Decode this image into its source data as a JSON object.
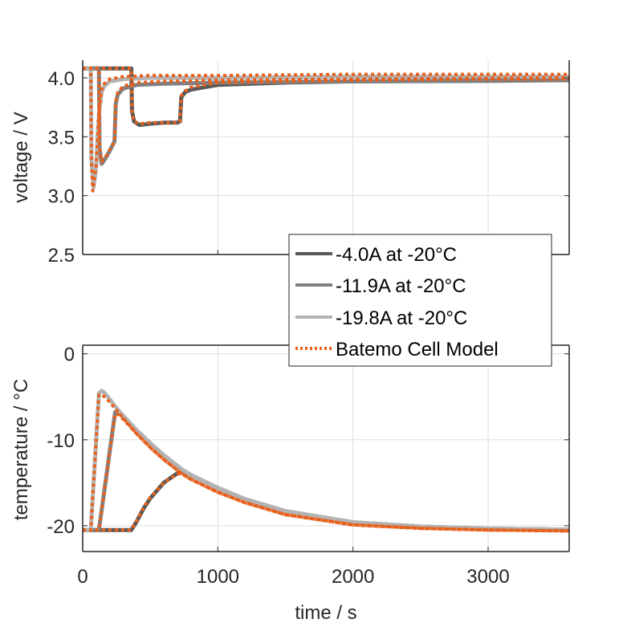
{
  "chart_data": [
    {
      "id": "voltage",
      "type": "line",
      "ylabel": "voltage / V",
      "xlabel": "",
      "xlim": [
        0,
        3600
      ],
      "ylim": [
        2.5,
        4.15
      ],
      "yticks": [
        2.5,
        3.0,
        3.5,
        4.0
      ],
      "ytick_labels": [
        "2.5",
        "3.0",
        "3.5",
        "4.0"
      ],
      "xticks": [
        0,
        1000,
        2000,
        3000
      ],
      "grid": true,
      "series": [
        {
          "name": "-4.0A at -20°C",
          "color": "#595959",
          "style": "solid",
          "x": [
            0,
            360,
            365,
            380,
            420,
            500,
            600,
            700,
            720,
            730,
            760,
            800,
            900,
            1000,
            1500,
            2000,
            3000,
            3600
          ],
          "y": [
            4.08,
            4.08,
            3.72,
            3.63,
            3.6,
            3.61,
            3.62,
            3.62,
            3.63,
            3.84,
            3.88,
            3.9,
            3.92,
            3.94,
            3.96,
            3.97,
            3.975,
            3.98
          ]
        },
        {
          "name": "-11.9A at -20°C",
          "color": "#808080",
          "style": "solid",
          "x": [
            0,
            120,
            125,
            140,
            170,
            200,
            235,
            245,
            260,
            300,
            400,
            600,
            1000,
            2000,
            3600
          ],
          "y": [
            4.08,
            4.08,
            3.4,
            3.27,
            3.32,
            3.38,
            3.46,
            3.78,
            3.86,
            3.91,
            3.94,
            3.95,
            3.96,
            3.97,
            3.98
          ]
        },
        {
          "name": "-19.8A at -20°C",
          "color": "#b3b3b3",
          "style": "solid",
          "x": [
            0,
            60,
            65,
            80,
            100,
            120,
            140,
            160,
            200,
            300,
            500,
            1000,
            2000,
            3600
          ],
          "y": [
            4.08,
            4.08,
            3.3,
            3.07,
            3.25,
            3.7,
            3.88,
            3.93,
            3.97,
            3.99,
            4.0,
            4.0,
            4.01,
            4.01
          ]
        },
        {
          "name": "Batemo Cell Model",
          "color": "#e8601c",
          "style": "dotted",
          "x": [
            0,
            60,
            65,
            75,
            100,
            120,
            140,
            160,
            200,
            300,
            500,
            1000,
            2000,
            3600
          ],
          "y": [
            4.08,
            4.08,
            3.3,
            3.04,
            3.25,
            3.7,
            3.9,
            3.95,
            3.99,
            4.01,
            4.02,
            4.02,
            4.03,
            4.03
          ]
        },
        {
          "name": "Batemo Cell Model",
          "color": "#e8601c",
          "style": "dotted",
          "x": [
            0,
            120,
            125,
            140,
            170,
            200,
            235,
            245,
            260,
            300,
            400,
            600,
            1000,
            2000,
            3600
          ],
          "y": [
            4.08,
            4.08,
            3.4,
            3.29,
            3.33,
            3.39,
            3.46,
            3.8,
            3.88,
            3.93,
            3.96,
            3.97,
            3.98,
            3.99,
            4.0
          ]
        },
        {
          "name": "Batemo Cell Model",
          "color": "#e8601c",
          "style": "dotted",
          "x": [
            0,
            360,
            365,
            380,
            420,
            500,
            600,
            700,
            720,
            730,
            760,
            800,
            900,
            1000,
            1500,
            2000,
            3000,
            3600
          ],
          "y": [
            4.08,
            4.08,
            3.72,
            3.63,
            3.61,
            3.62,
            3.62,
            3.62,
            3.63,
            3.85,
            3.89,
            3.92,
            3.94,
            3.96,
            3.97,
            3.98,
            3.99,
            3.99
          ]
        }
      ]
    },
    {
      "id": "temperature",
      "type": "line",
      "ylabel": "temperature / °C",
      "xlabel": "time / s",
      "xlim": [
        0,
        3600
      ],
      "ylim": [
        -23,
        1
      ],
      "yticks": [
        -20,
        -10,
        0
      ],
      "ytick_labels": [
        "-20",
        "-10",
        "0"
      ],
      "xticks": [
        0,
        1000,
        2000,
        3000
      ],
      "xtick_labels": [
        "0",
        "1000",
        "2000",
        "3000"
      ],
      "grid": true,
      "series": [
        {
          "name": "-4.0A at -20°C",
          "color": "#595959",
          "style": "solid",
          "x": [
            0,
            360,
            400,
            450,
            500,
            600,
            700,
            730,
            800,
            1000,
            1200,
            1500,
            2000,
            2500,
            3000,
            3600
          ],
          "y": [
            -20.5,
            -20.5,
            -19.5,
            -18.0,
            -16.8,
            -15.0,
            -13.9,
            -13.6,
            -14.1,
            -15.6,
            -16.9,
            -18.3,
            -19.6,
            -20.1,
            -20.35,
            -20.45
          ]
        },
        {
          "name": "-11.9A at -20°C",
          "color": "#808080",
          "style": "solid",
          "x": [
            0,
            120,
            240,
            260,
            300,
            400,
            500,
            600,
            730,
            800,
            1000,
            1200,
            1500,
            2000,
            2500,
            3000,
            3600
          ],
          "y": [
            -20.5,
            -20.5,
            -6.8,
            -6.7,
            -7.3,
            -8.9,
            -10.4,
            -11.8,
            -13.4,
            -14.1,
            -15.6,
            -16.9,
            -18.3,
            -19.6,
            -20.1,
            -20.35,
            -20.45
          ]
        },
        {
          "name": "-19.8A at -20°C",
          "color": "#b3b3b3",
          "style": "solid",
          "x": [
            0,
            60,
            120,
            140,
            160,
            200,
            260,
            300,
            400,
            500,
            600,
            730,
            800,
            1000,
            1200,
            1500,
            2000,
            2500,
            3000,
            3600
          ],
          "y": [
            -20.5,
            -20.5,
            -4.6,
            -4.3,
            -4.5,
            -5.3,
            -6.5,
            -7.2,
            -8.9,
            -10.4,
            -11.8,
            -13.4,
            -14.1,
            -15.6,
            -16.9,
            -18.3,
            -19.6,
            -20.1,
            -20.35,
            -20.45
          ]
        },
        {
          "name": "Batemo Cell Model",
          "color": "#e8601c",
          "style": "dotted",
          "x": [
            0,
            60,
            120,
            140,
            200,
            300,
            400,
            500,
            600,
            730,
            800,
            1000,
            1200,
            1500,
            2000,
            2500,
            3000,
            3600
          ],
          "y": [
            -20.5,
            -20.5,
            -4.8,
            -4.7,
            -5.6,
            -7.5,
            -9.3,
            -10.9,
            -12.3,
            -13.9,
            -14.6,
            -16.1,
            -17.3,
            -18.7,
            -19.9,
            -20.3,
            -20.5,
            -20.6
          ]
        },
        {
          "name": "Batemo Cell Model",
          "color": "#e8601c",
          "style": "dotted",
          "x": [
            0,
            120,
            240,
            260,
            300,
            400,
            500,
            600,
            730,
            800,
            1000,
            1200,
            1500,
            2000,
            2500,
            3000,
            3600
          ],
          "y": [
            -20.5,
            -20.5,
            -7.0,
            -7.0,
            -7.6,
            -9.3,
            -10.9,
            -12.3,
            -13.9,
            -14.6,
            -16.1,
            -17.3,
            -18.7,
            -19.9,
            -20.3,
            -20.5,
            -20.6
          ]
        },
        {
          "name": "Batemo Cell Model",
          "color": "#e8601c",
          "style": "dotted",
          "x": [
            0,
            360,
            400,
            450,
            500,
            600,
            700,
            730,
            800,
            1000,
            1200,
            1500,
            2000,
            2500,
            3000,
            3600
          ],
          "y": [
            -20.5,
            -20.5,
            -19.4,
            -17.9,
            -16.7,
            -15.0,
            -14.0,
            -13.9,
            -14.6,
            -16.1,
            -17.3,
            -18.7,
            -19.9,
            -20.3,
            -20.5,
            -20.6
          ]
        }
      ]
    }
  ],
  "legend": {
    "placement": "center-right",
    "entries": [
      {
        "label": "-4.0A at -20°C",
        "color": "#595959",
        "style": "solid"
      },
      {
        "label": "-11.9A at -20°C",
        "color": "#808080",
        "style": "solid"
      },
      {
        "label": "-19.8A at -20°C",
        "color": "#b3b3b3",
        "style": "solid"
      },
      {
        "label": "Batemo Cell Model",
        "color": "#e8601c",
        "style": "dotted"
      }
    ]
  },
  "labels": {
    "voltage_ylabel": "voltage / V",
    "temperature_ylabel": "temperature / °C",
    "xlabel": "time / s",
    "legend_0": "-4.0A at -20°C",
    "legend_1": "-11.9A at -20°C",
    "legend_2": "-19.8A at -20°C",
    "legend_3": "Batemo Cell Model"
  }
}
